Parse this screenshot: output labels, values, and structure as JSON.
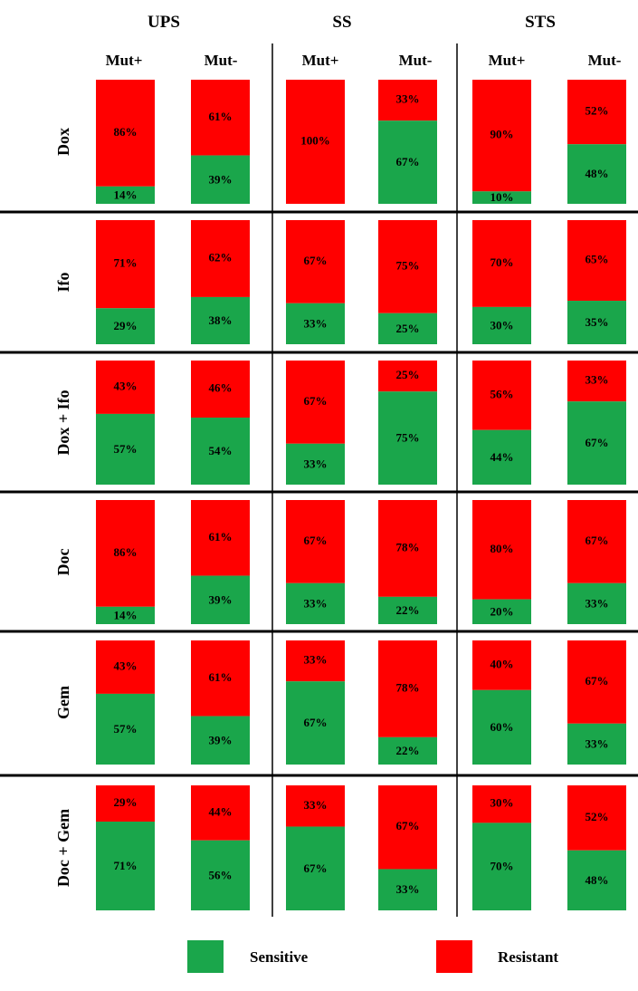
{
  "chart_data": {
    "type": "bar",
    "stacked": true,
    "groups": [
      "UPS",
      "SS",
      "STS"
    ],
    "columns": [
      "Mut+",
      "Mut-"
    ],
    "rows": [
      "Dox",
      "Ifo",
      "Dox + Ifo",
      "Doc",
      "Gem",
      "Doc + Gem"
    ],
    "series": [
      {
        "name": "Sensitive",
        "color": "#1aa64b"
      },
      {
        "name": "Resistant",
        "color": "#ff0000"
      }
    ],
    "sensitive": [
      [
        14,
        39,
        0,
        67,
        10,
        48
      ],
      [
        29,
        38,
        33,
        25,
        30,
        35
      ],
      [
        57,
        54,
        33,
        75,
        44,
        67
      ],
      [
        14,
        39,
        33,
        22,
        20,
        33
      ],
      [
        57,
        39,
        67,
        22,
        60,
        33
      ],
      [
        71,
        56,
        67,
        33,
        70,
        48
      ]
    ],
    "resistant": [
      [
        86,
        61,
        100,
        33,
        90,
        52
      ],
      [
        71,
        62,
        67,
        75,
        70,
        65
      ],
      [
        43,
        46,
        67,
        25,
        56,
        33
      ],
      [
        86,
        61,
        67,
        78,
        80,
        67
      ],
      [
        43,
        61,
        33,
        78,
        40,
        67
      ],
      [
        29,
        44,
        33,
        67,
        30,
        52
      ]
    ],
    "unit": "%",
    "ylim": [
      0,
      100
    ],
    "legend_position": "bottom"
  }
}
